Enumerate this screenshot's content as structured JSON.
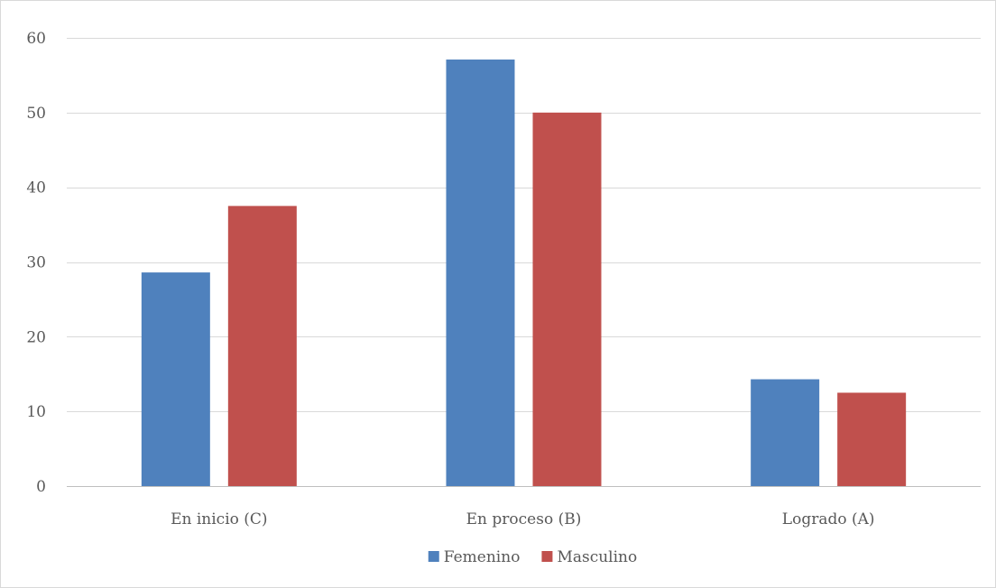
{
  "chart_data": {
    "type": "bar",
    "categories": [
      "En inicio (C)",
      "En proceso (B)",
      "Logrado (A)"
    ],
    "series": [
      {
        "name": "Femenino",
        "color": "#4f81bd",
        "values": [
          28.6,
          57.1,
          14.3
        ]
      },
      {
        "name": "Masculino",
        "color": "#c0504d",
        "values": [
          37.5,
          50.0,
          12.5
        ]
      }
    ],
    "title": "",
    "xlabel": "",
    "ylabel": "",
    "ylim": [
      0,
      60
    ],
    "yticks": [
      0,
      10,
      20,
      30,
      40,
      50,
      60
    ],
    "grid": true,
    "legend_position": "bottom",
    "gridline_color": "#d9d9d9",
    "axis_text_color": "#595959"
  }
}
